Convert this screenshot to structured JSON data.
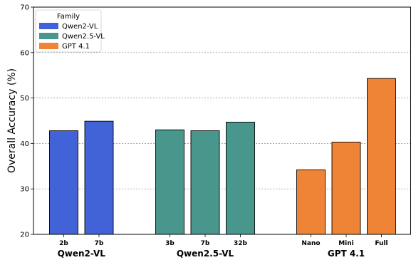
{
  "chart_data": {
    "type": "bar",
    "ylabel": "Overall Accuracy (%)",
    "ylim": [
      20,
      70
    ],
    "yticks": [
      20,
      30,
      40,
      50,
      60,
      70
    ],
    "grid": "horizontal-dashed",
    "legend": {
      "title": "Family",
      "placement": "top-left",
      "entries": [
        {
          "label": "Qwen2-VL",
          "color": "#4263d8"
        },
        {
          "label": "Qwen2.5-VL",
          "color": "#48968c"
        },
        {
          "label": "GPT 4.1",
          "color": "#f08436"
        }
      ]
    },
    "groups": [
      {
        "name": "Qwen2-VL",
        "color": "#4263d8",
        "bars": [
          {
            "label": "2b",
            "value": 42.8
          },
          {
            "label": "7b",
            "value": 44.9
          }
        ]
      },
      {
        "name": "Qwen2.5-VL",
        "color": "#48968c",
        "bars": [
          {
            "label": "3b",
            "value": 43.0
          },
          {
            "label": "7b",
            "value": 42.8
          },
          {
            "label": "32b",
            "value": 44.7
          }
        ]
      },
      {
        "name": "GPT 4.1",
        "color": "#f08436",
        "bars": [
          {
            "label": "Nano",
            "value": 34.2
          },
          {
            "label": "Mini",
            "value": 40.3
          },
          {
            "label": "Full",
            "value": 54.3
          }
        ]
      }
    ]
  }
}
